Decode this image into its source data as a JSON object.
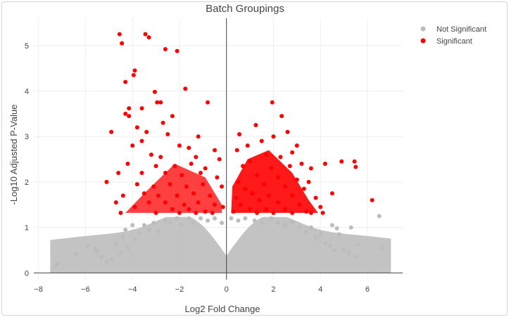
{
  "chart_data": {
    "type": "scatter",
    "title": "Batch Groupings",
    "xlabel": "Log2 Fold Change",
    "ylabel": "-Log10 Adjusted P-Value",
    "xlim": [
      -8.2,
      7.5
    ],
    "ylim": [
      -0.15,
      5.6
    ],
    "x_ticks": [
      -8,
      -6,
      -4,
      -2,
      0,
      2,
      4,
      6
    ],
    "y_ticks": [
      0,
      1,
      2,
      3,
      4,
      5
    ],
    "grid": true,
    "zero_lines": true,
    "legend_position": "top-right",
    "significance_threshold_y": 1.3,
    "series": [
      {
        "name": "Not Significant",
        "color": "#bcbcbc",
        "points": [
          [
            -7.3,
            0.15
          ],
          [
            -7.2,
            0.2
          ],
          [
            -6.4,
            0.42
          ],
          [
            -5.9,
            0.6
          ],
          [
            -5.6,
            0.53
          ],
          [
            -5.5,
            0.47
          ],
          [
            -5.3,
            0.35
          ],
          [
            -5.1,
            0.25
          ],
          [
            -4.9,
            0.3
          ],
          [
            -4.7,
            0.65
          ],
          [
            -4.5,
            0.45
          ],
          [
            -4.4,
            0.8
          ],
          [
            -4.3,
            0.95
          ],
          [
            -4.2,
            0.55
          ],
          [
            -4.0,
            1.05
          ],
          [
            -3.9,
            0.75
          ],
          [
            -3.7,
            0.88
          ],
          [
            -3.5,
            1.05
          ],
          [
            -3.3,
            0.95
          ],
          [
            -3.1,
            1.1
          ],
          [
            -2.9,
            0.92
          ],
          [
            -2.6,
            1.15
          ],
          [
            -2.4,
            1.1
          ],
          [
            -2.1,
            1.2
          ],
          [
            -1.9,
            1.05
          ],
          [
            -1.6,
            1.2
          ],
          [
            -1.4,
            1.1
          ],
          [
            -1.1,
            1.2
          ],
          [
            -0.8,
            1.15
          ],
          [
            -0.5,
            1.2
          ],
          [
            -0.2,
            1.1
          ],
          [
            0.2,
            1.2
          ],
          [
            0.5,
            1.15
          ],
          [
            0.8,
            1.2
          ],
          [
            1.2,
            1.15
          ],
          [
            1.5,
            1.1
          ],
          [
            1.9,
            1.2
          ],
          [
            2.2,
            1.1
          ],
          [
            2.5,
            1.05
          ],
          [
            2.8,
            1.12
          ],
          [
            3.1,
            1.0
          ],
          [
            3.4,
            0.9
          ],
          [
            3.6,
            1.0
          ],
          [
            3.8,
            0.78
          ],
          [
            4.0,
            0.85
          ],
          [
            4.2,
            0.65
          ],
          [
            4.4,
            0.6
          ],
          [
            4.6,
            0.5
          ],
          [
            4.7,
            0.98
          ],
          [
            4.8,
            0.85
          ],
          [
            5.0,
            0.5
          ],
          [
            5.2,
            0.45
          ],
          [
            5.5,
            0.35
          ],
          [
            5.6,
            0.62
          ],
          [
            6.5,
            1.25
          ],
          [
            6.6,
            0.55
          ],
          [
            5.3,
            1.0
          ],
          [
            4.5,
            1.05
          ]
        ]
      },
      {
        "name": "Significant",
        "color": "#ff0000",
        "points": [
          [
            -4.55,
            5.25
          ],
          [
            -4.45,
            5.05
          ],
          [
            -3.45,
            5.25
          ],
          [
            -3.3,
            5.18
          ],
          [
            -2.6,
            4.92
          ],
          [
            -2.1,
            4.88
          ],
          [
            -3.9,
            4.45
          ],
          [
            -3.95,
            4.35
          ],
          [
            -4.3,
            4.2
          ],
          [
            -1.75,
            4.05
          ],
          [
            -3.05,
            3.98
          ],
          [
            -2.95,
            3.75
          ],
          [
            -2.8,
            3.75
          ],
          [
            -0.8,
            3.75
          ],
          [
            -4.15,
            3.62
          ],
          [
            -3.6,
            3.62
          ],
          [
            -4.3,
            3.5
          ],
          [
            -4.15,
            3.45
          ],
          [
            -2.3,
            3.45
          ],
          [
            -2.7,
            3.3
          ],
          [
            -3.8,
            3.2
          ],
          [
            -4.9,
            3.1
          ],
          [
            -3.4,
            3.1
          ],
          [
            -2.5,
            3.05
          ],
          [
            -1.2,
            3.0
          ],
          [
            -3.6,
            2.9
          ],
          [
            -4.0,
            2.8
          ],
          [
            -2.0,
            2.8
          ],
          [
            -1.6,
            2.75
          ],
          [
            -0.5,
            2.7
          ],
          [
            -3.2,
            2.6
          ],
          [
            -2.8,
            2.55
          ],
          [
            -1.3,
            2.55
          ],
          [
            -0.3,
            2.5
          ],
          [
            -4.2,
            2.4
          ],
          [
            -3.0,
            2.35
          ],
          [
            -2.2,
            2.35
          ],
          [
            -1.5,
            2.4
          ],
          [
            -0.9,
            2.3
          ],
          [
            -4.6,
            2.2
          ],
          [
            -3.6,
            2.2
          ],
          [
            -2.6,
            2.2
          ],
          [
            -1.9,
            2.15
          ],
          [
            -1.1,
            2.2
          ],
          [
            -0.4,
            2.1
          ],
          [
            -5.1,
            2.0
          ],
          [
            -3.8,
            1.95
          ],
          [
            -3.1,
            1.9
          ],
          [
            -2.4,
            1.95
          ],
          [
            -1.7,
            1.9
          ],
          [
            -1.0,
            1.95
          ],
          [
            -0.2,
            1.9
          ],
          [
            -4.4,
            1.7
          ],
          [
            -3.5,
            1.75
          ],
          [
            -2.9,
            1.7
          ],
          [
            -2.1,
            1.7
          ],
          [
            -1.4,
            1.75
          ],
          [
            -0.7,
            1.7
          ],
          [
            -4.7,
            1.55
          ],
          [
            -3.3,
            1.55
          ],
          [
            -2.6,
            1.55
          ],
          [
            -1.8,
            1.5
          ],
          [
            -1.2,
            1.55
          ],
          [
            -0.5,
            1.5
          ],
          [
            -0.15,
            1.45
          ],
          [
            -3.9,
            1.45
          ],
          [
            -2.3,
            1.4
          ],
          [
            -1.6,
            1.4
          ],
          [
            -0.9,
            1.35
          ],
          [
            -4.5,
            1.32
          ],
          [
            -3.0,
            1.32
          ],
          [
            -2.0,
            1.32
          ],
          [
            -1.3,
            1.32
          ],
          [
            -0.6,
            1.32
          ],
          [
            1.95,
            3.75
          ],
          [
            2.35,
            3.45
          ],
          [
            1.25,
            3.25
          ],
          [
            2.6,
            3.1
          ],
          [
            0.55,
            3.05
          ],
          [
            2.0,
            3.0
          ],
          [
            1.5,
            2.9
          ],
          [
            3.0,
            2.8
          ],
          [
            0.9,
            2.8
          ],
          [
            2.8,
            2.65
          ],
          [
            0.45,
            2.7
          ],
          [
            1.7,
            2.6
          ],
          [
            2.3,
            2.55
          ],
          [
            3.2,
            2.4
          ],
          [
            4.2,
            2.4
          ],
          [
            1.0,
            2.45
          ],
          [
            5.45,
            2.45
          ],
          [
            4.9,
            2.45
          ],
          [
            0.7,
            2.35
          ],
          [
            1.9,
            2.3
          ],
          [
            2.7,
            2.35
          ],
          [
            3.6,
            2.3
          ],
          [
            5.5,
            2.33
          ],
          [
            1.3,
            2.15
          ],
          [
            2.2,
            2.1
          ],
          [
            3.0,
            2.05
          ],
          [
            3.5,
            2.0
          ],
          [
            0.5,
            2.0
          ],
          [
            1.6,
            1.95
          ],
          [
            2.5,
            1.9
          ],
          [
            3.3,
            1.85
          ],
          [
            0.8,
            1.85
          ],
          [
            4.5,
            1.75
          ],
          [
            1.1,
            1.75
          ],
          [
            1.8,
            1.7
          ],
          [
            2.8,
            1.7
          ],
          [
            3.8,
            1.65
          ],
          [
            0.4,
            1.65
          ],
          [
            6.2,
            1.6
          ],
          [
            1.4,
            1.6
          ],
          [
            2.2,
            1.55
          ],
          [
            3.1,
            1.5
          ],
          [
            4.0,
            1.45
          ],
          [
            0.6,
            1.5
          ],
          [
            1.0,
            1.4
          ],
          [
            1.7,
            1.4
          ],
          [
            2.5,
            1.4
          ],
          [
            3.4,
            1.35
          ],
          [
            0.3,
            1.35
          ],
          [
            1.3,
            1.32
          ],
          [
            2.0,
            1.32
          ],
          [
            2.8,
            1.32
          ],
          [
            3.6,
            1.32
          ],
          [
            4.1,
            1.32
          ]
        ]
      }
    ]
  },
  "legend": {
    "items": [
      {
        "label": "Not Significant",
        "color": "#bcbcbc"
      },
      {
        "label": "Significant",
        "color": "#ff0000"
      }
    ]
  }
}
